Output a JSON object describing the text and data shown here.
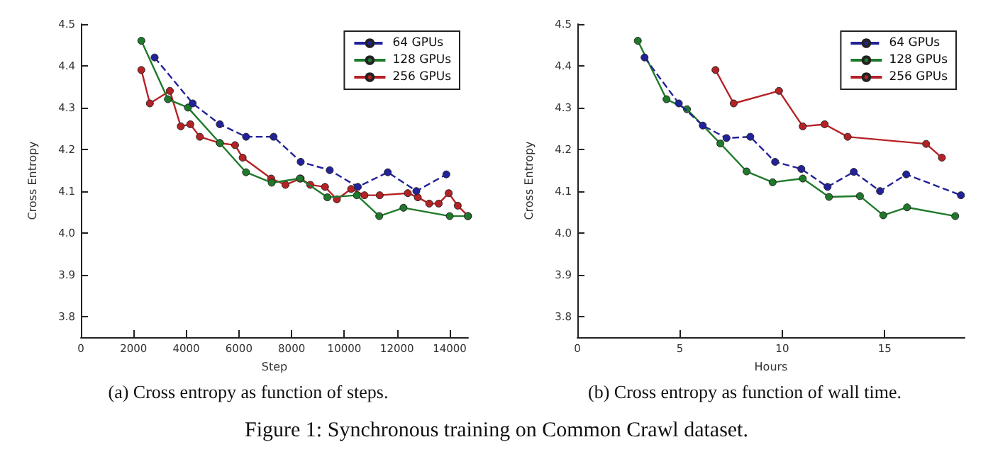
{
  "chart_data": [
    {
      "type": "line",
      "title": "(a) Cross entropy as function of steps.",
      "xlabel": "Step",
      "ylabel": "Cross Entropy",
      "xlim": [
        0,
        14700
      ],
      "xticks": [
        0,
        2000,
        4000,
        6000,
        8000,
        10000,
        12000,
        14000
      ],
      "ylim": [
        3.75,
        4.5
      ],
      "yticks": [
        3.8,
        3.9,
        {
          "value": 4,
          "label": "4.0"
        },
        4.1,
        4.2,
        4.3,
        4.4,
        4.5
      ],
      "grid": false,
      "legend": "top right",
      "marker": "circle",
      "series": [
        {
          "name": "64 GPUs",
          "color": "#22229a",
          "line_style": "dashed",
          "x": [
            2800,
            4245,
            5275,
            6270,
            7316,
            8346,
            9447,
            10513,
            11650,
            12735,
            13873
          ],
          "values": [
            4.42,
            4.31,
            4.26,
            4.23,
            4.23,
            4.17,
            4.15,
            4.11,
            4.145,
            4.1,
            4.14
          ]
        },
        {
          "name": "128 GPUs",
          "color": "#1e7a2a",
          "line_style": "solid",
          "x": [
            2295,
            3306,
            4064,
            5275,
            6268,
            7243,
            8309,
            9357,
            10477,
            11326,
            12247,
            14000,
            14685
          ],
          "values": [
            4.46,
            4.32,
            4.3,
            4.215,
            4.145,
            4.12,
            4.13,
            4.085,
            4.09,
            4.04,
            4.06,
            4.04,
            4.04
          ]
        },
        {
          "name": "256 GPUs",
          "color": "#b52226",
          "line_style": "solid",
          "x": [
            2295,
            2619,
            3378,
            3793,
            4155,
            4516,
            5275,
            5853,
            6142,
            7225,
            7767,
            8345,
            8707,
            9267,
            9718,
            10260,
            10766,
            11344,
            12410,
            12789,
            13223,
            13584,
            13963,
            14306,
            14700
          ],
          "values": [
            4.39,
            4.31,
            4.34,
            4.255,
            4.26,
            4.23,
            4.215,
            4.21,
            4.18,
            4.13,
            4.115,
            4.13,
            4.115,
            4.11,
            4.08,
            4.105,
            4.09,
            4.09,
            4.095,
            4.085,
            4.07,
            4.07,
            4.095,
            4.065,
            4.04
          ]
        }
      ]
    },
    {
      "type": "line",
      "title": "(b) Cross entropy as function of wall time.",
      "xlabel": "Hours",
      "ylabel": "Cross Entropy",
      "xlim": [
        0,
        18.9
      ],
      "xticks": [
        0,
        5,
        10,
        15
      ],
      "ylim": [
        3.75,
        4.5
      ],
      "yticks": [
        3.8,
        3.9,
        {
          "value": 4,
          "label": "4.0"
        },
        4.1,
        4.2,
        4.3,
        4.4,
        4.5
      ],
      "grid": false,
      "legend": "top right",
      "marker": "circle",
      "annotations": [
        "Figure 1: Synchronous training on Common Crawl dataset."
      ],
      "series": [
        {
          "name": "64 GPUs",
          "color": "#22229a",
          "line_style": "dashed",
          "x": [
            3.28,
            4.95,
            6.12,
            7.28,
            8.44,
            9.65,
            10.93,
            12.21,
            13.49,
            14.77,
            16.05,
            18.72
          ],
          "values": [
            4.42,
            4.31,
            4.257,
            4.227,
            4.23,
            4.17,
            4.153,
            4.11,
            4.146,
            4.1,
            4.14,
            4.09
          ]
        },
        {
          "name": "128 GPUs",
          "color": "#1e7a2a",
          "line_style": "solid",
          "x": [
            2.95,
            4.35,
            5.35,
            6.98,
            8.26,
            9.53,
            11.0,
            12.28,
            13.79,
            14.93,
            16.09,
            18.44
          ],
          "values": [
            4.46,
            4.32,
            4.296,
            4.214,
            4.147,
            4.121,
            4.13,
            4.086,
            4.088,
            4.042,
            4.061,
            4.04
          ]
        },
        {
          "name": "256 GPUs",
          "color": "#b52226",
          "line_style": "solid",
          "x": [
            6.74,
            7.63,
            9.84,
            11.0,
            12.07,
            13.19,
            17.02,
            17.79
          ],
          "values": [
            4.39,
            4.31,
            4.34,
            4.255,
            4.26,
            4.23,
            4.213,
            4.18
          ]
        }
      ]
    }
  ]
}
